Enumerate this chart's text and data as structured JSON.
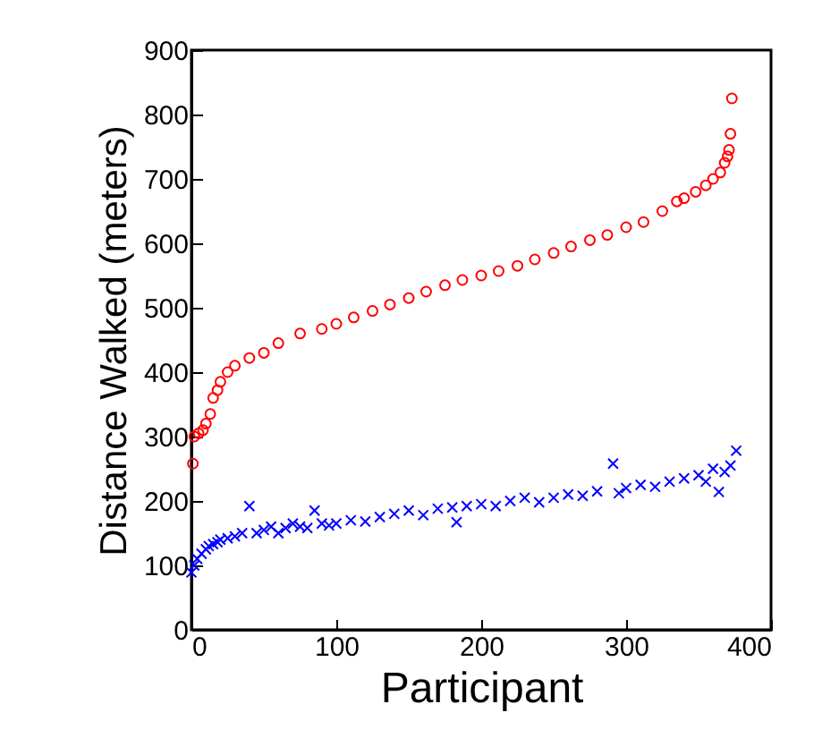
{
  "chart_data": {
    "type": "scatter",
    "xlabel": "Participant",
    "ylabel": "Distance Walked (meters)",
    "xlim": [
      0,
      400
    ],
    "xticks": [
      0,
      100,
      200,
      300,
      400
    ],
    "ylim": [
      0,
      900
    ],
    "yticks": [
      0,
      100,
      200,
      300,
      400,
      500,
      600,
      700,
      800,
      900
    ],
    "grid": false,
    "series": [
      {
        "color": "#ff0000",
        "marker": "circle",
        "x": [
          1,
          2,
          5,
          8,
          10,
          13,
          15,
          18,
          20,
          25,
          30,
          40,
          50,
          60,
          75,
          90,
          100,
          112,
          125,
          137,
          150,
          162,
          175,
          187,
          200,
          212,
          225,
          237,
          250,
          262,
          275,
          287,
          300,
          312,
          325,
          335,
          340,
          348,
          355,
          360,
          365,
          368,
          370,
          371,
          372,
          373
        ],
        "values": [
          258,
          300,
          305,
          310,
          320,
          335,
          360,
          372,
          385,
          400,
          410,
          422,
          430,
          445,
          460,
          467,
          475,
          485,
          495,
          505,
          515,
          525,
          535,
          543,
          550,
          557,
          565,
          575,
          585,
          595,
          605,
          613,
          625,
          633,
          650,
          665,
          670,
          680,
          690,
          700,
          710,
          725,
          735,
          745,
          770,
          825
        ]
      },
      {
        "color": "#0000ff",
        "marker": "cross",
        "x": [
          0,
          2,
          4,
          7,
          10,
          12,
          15,
          18,
          20,
          25,
          30,
          35,
          40,
          45,
          50,
          55,
          60,
          65,
          70,
          75,
          80,
          85,
          90,
          95,
          100,
          110,
          120,
          130,
          140,
          150,
          160,
          170,
          180,
          183,
          190,
          200,
          210,
          220,
          230,
          240,
          250,
          260,
          270,
          280,
          291,
          295,
          300,
          310,
          320,
          330,
          340,
          350,
          355,
          360,
          364,
          368,
          372,
          376
        ],
        "values": [
          89,
          100,
          110,
          118,
          125,
          130,
          133,
          136,
          140,
          142,
          145,
          150,
          192,
          150,
          155,
          160,
          150,
          158,
          165,
          160,
          158,
          185,
          165,
          162,
          165,
          170,
          168,
          175,
          180,
          185,
          178,
          188,
          190,
          167,
          192,
          195,
          192,
          200,
          205,
          198,
          205,
          210,
          208,
          215,
          258,
          212,
          220,
          225,
          222,
          230,
          235,
          240,
          230,
          250,
          214,
          245,
          255,
          278
        ]
      }
    ]
  }
}
